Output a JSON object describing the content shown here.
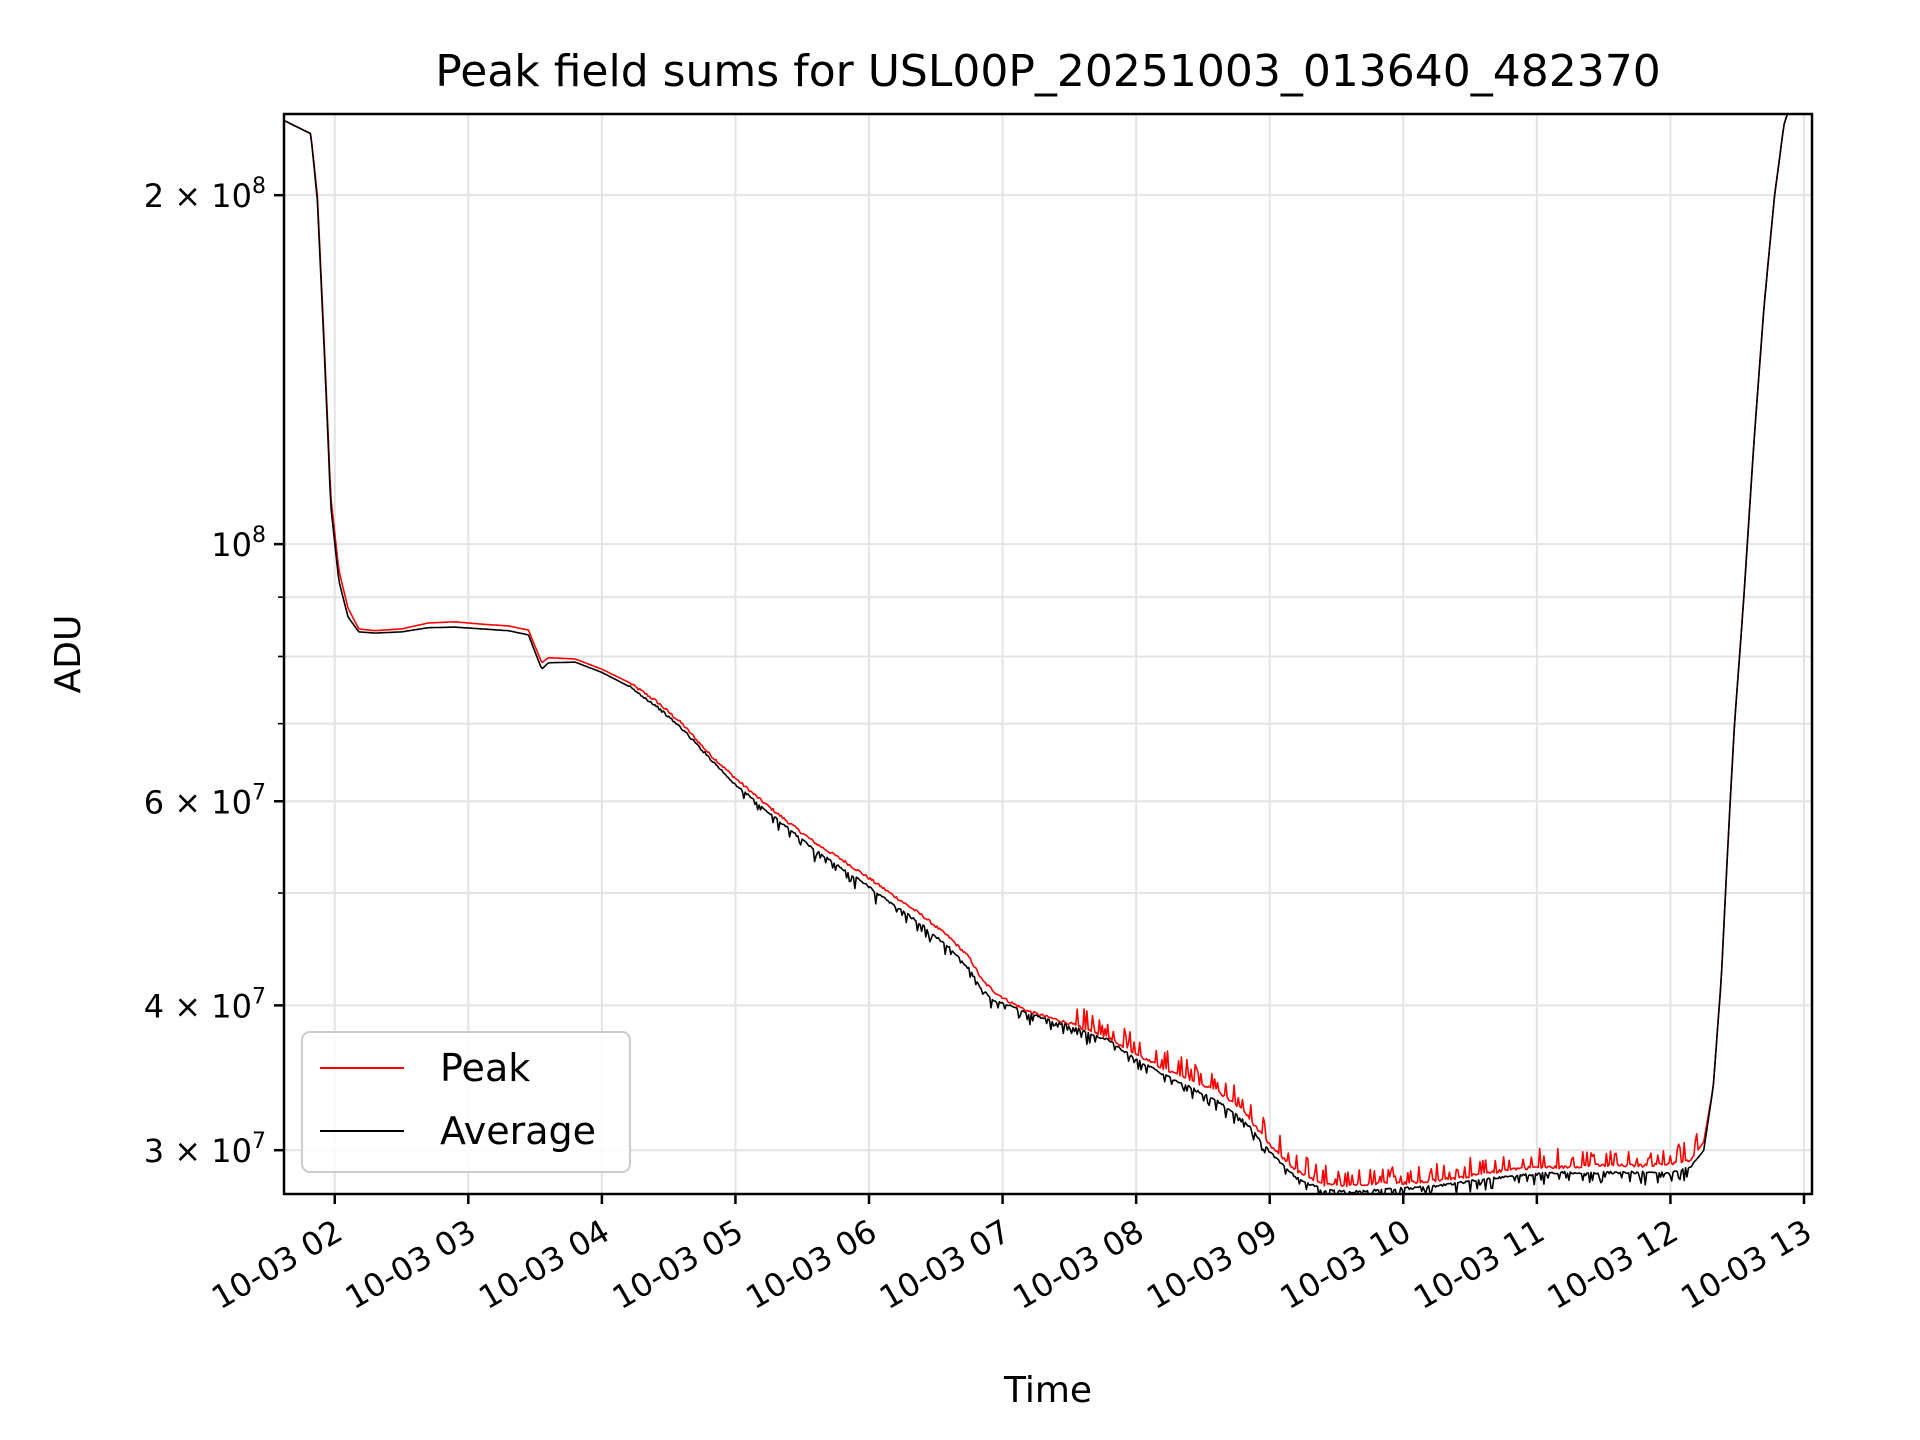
{
  "chart_data": {
    "type": "line",
    "title": "Peak field sums for USL00P_20251003_013640_482370",
    "xlabel": "Time",
    "ylabel": "ADU",
    "yscale": "log",
    "xlim": [
      1.62,
      13.06
    ],
    "ylim": [
      27500000,
      235000000
    ],
    "grid": true,
    "x_ticks": [
      {
        "v": 2,
        "label": "10-03 02"
      },
      {
        "v": 3,
        "label": "10-03 03"
      },
      {
        "v": 4,
        "label": "10-03 04"
      },
      {
        "v": 5,
        "label": "10-03 05"
      },
      {
        "v": 6,
        "label": "10-03 06"
      },
      {
        "v": 7,
        "label": "10-03 07"
      },
      {
        "v": 8,
        "label": "10-03 08"
      },
      {
        "v": 9,
        "label": "10-03 09"
      },
      {
        "v": 10,
        "label": "10-03 10"
      },
      {
        "v": 11,
        "label": "10-03 11"
      },
      {
        "v": 12,
        "label": "10-03 12"
      },
      {
        "v": 13,
        "label": "10-03 13"
      }
    ],
    "y_major_ticks": [
      {
        "v": 30000000,
        "mant": "3",
        "exp": "7"
      },
      {
        "v": 40000000,
        "mant": "4",
        "exp": "7"
      },
      {
        "v": 60000000,
        "mant": "6",
        "exp": "7"
      },
      {
        "v": 100000000,
        "mant": "",
        "exp": "8"
      },
      {
        "v": 200000000,
        "mant": "2",
        "exp": "8"
      }
    ],
    "y_minor_ticks": [
      50000000,
      70000000,
      80000000,
      90000000
    ],
    "legend": {
      "position": "lower-left",
      "entries": [
        "Peak",
        "Average"
      ]
    },
    "series": [
      {
        "name": "Peak",
        "color": "#ff0000",
        "x": [
          1.62,
          1.82,
          1.87,
          1.92,
          1.97,
          2.03,
          2.1,
          2.18,
          2.3,
          2.5,
          2.7,
          2.9,
          3.1,
          3.3,
          3.45,
          3.55,
          3.6,
          3.8,
          4.0,
          4.2,
          4.4,
          4.6,
          4.8,
          5.0,
          5.2,
          5.4,
          5.6,
          5.8,
          6.0,
          6.2,
          6.4,
          6.6,
          6.75,
          6.85,
          6.95,
          7.05,
          7.2,
          7.5,
          7.8,
          8.0,
          8.2,
          8.4,
          8.6,
          8.8,
          9.0,
          9.2,
          9.4,
          9.6,
          9.8,
          10.0,
          10.2,
          10.4,
          10.6,
          10.8,
          11.0,
          11.2,
          11.4,
          11.6,
          11.8,
          12.0,
          12.15,
          12.25,
          12.32,
          12.38,
          12.43,
          12.48,
          12.55,
          12.62,
          12.7,
          12.78,
          12.85,
          12.9,
          13.06
        ],
        "y": [
          232000000,
          226000000,
          200000000,
          150000000,
          110000000,
          95000000,
          88000000,
          84500000,
          84200000,
          84500000,
          85500000,
          85700000,
          85300000,
          85000000,
          84300000,
          79000000,
          79800000,
          79600000,
          78000000,
          76000000,
          73300000,
          70000000,
          66000000,
          62800000,
          60000000,
          57500000,
          55200000,
          53400000,
          51500000,
          49600000,
          47800000,
          45800000,
          44000000,
          42000000,
          41000000,
          40300000,
          39500000,
          38600000,
          37500000,
          36300000,
          35300000,
          34500000,
          33800000,
          32500000,
          30300000,
          28800000,
          28000000,
          28000000,
          28100000,
          28100000,
          28200000,
          28400000,
          28600000,
          28900000,
          29000000,
          29000000,
          29100000,
          29100000,
          29100000,
          29200000,
          29400000,
          30500000,
          34000000,
          42000000,
          55000000,
          70000000,
          90000000,
          120000000,
          160000000,
          200000000,
          230000000,
          240000000,
          240000000
        ]
      },
      {
        "name": "Average",
        "color": "#000000",
        "x": [
          1.62,
          1.82,
          1.87,
          1.92,
          1.97,
          2.03,
          2.1,
          2.18,
          2.3,
          2.5,
          2.7,
          2.9,
          3.1,
          3.3,
          3.45,
          3.55,
          3.6,
          3.8,
          4.0,
          4.2,
          4.4,
          4.6,
          4.8,
          5.0,
          5.2,
          5.4,
          5.6,
          5.8,
          6.0,
          6.2,
          6.4,
          6.6,
          6.75,
          6.85,
          6.95,
          7.05,
          7.2,
          7.5,
          7.8,
          8.0,
          8.2,
          8.4,
          8.6,
          8.8,
          9.0,
          9.2,
          9.4,
          9.6,
          9.8,
          10.0,
          10.2,
          10.4,
          10.6,
          10.8,
          11.0,
          11.2,
          11.4,
          11.6,
          11.8,
          12.0,
          12.15,
          12.25,
          12.32,
          12.38,
          12.43,
          12.48,
          12.55,
          12.62,
          12.7,
          12.78,
          12.85,
          12.9,
          13.06
        ],
        "y": [
          232000000,
          226000000,
          198000000,
          148000000,
          108000000,
          93000000,
          86500000,
          84000000,
          83800000,
          84000000,
          84700000,
          84800000,
          84500000,
          84200000,
          83500000,
          78000000,
          79000000,
          79100000,
          77500000,
          75400000,
          72600000,
          69300000,
          65500000,
          62000000,
          59300000,
          56800000,
          54400000,
          52500000,
          50600000,
          48700000,
          46900000,
          44900000,
          43000000,
          41200000,
          40300000,
          40000000,
          39300000,
          38400000,
          37300000,
          35900000,
          34900000,
          34000000,
          33100000,
          31900000,
          29900000,
          28400000,
          27700000,
          27600000,
          27700000,
          27800000,
          27900000,
          28100000,
          28300000,
          28500000,
          28600000,
          28700000,
          28700000,
          28700000,
          28700000,
          28700000,
          29000000,
          30000000,
          34000000,
          42000000,
          55000000,
          70000000,
          90000000,
          120000000,
          160000000,
          200000000,
          230000000,
          240000000,
          240000000
        ]
      }
    ]
  }
}
